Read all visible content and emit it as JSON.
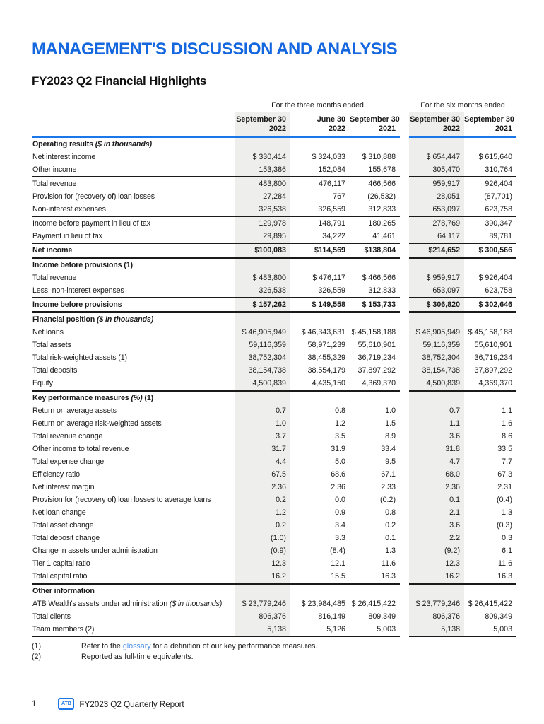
{
  "page": {
    "title": "MANAGEMENT'S DISCUSSION AND ANALYSIS",
    "subtitle": "FY2023 Q2 Financial Highlights"
  },
  "colors": {
    "brand_blue": "#1467df",
    "rule_blue": "#1b76e8",
    "link_blue": "#4a90e8",
    "shade_gray": "#eeeeec"
  },
  "table": {
    "group_headers": [
      {
        "label": "For the three months ended",
        "span": 3
      },
      {
        "label": "For the six months ended",
        "span": 2
      }
    ],
    "column_headers": [
      {
        "line1": "September 30",
        "line2": "2022",
        "shaded": true
      },
      {
        "line1": "June 30",
        "line2": "2022",
        "shaded": false
      },
      {
        "line1": "September 30",
        "line2": "2021",
        "shaded": false
      },
      {
        "line1": "September 30",
        "line2": "2022",
        "shaded": true
      },
      {
        "line1": "September 30",
        "line2": "2021",
        "shaded": false
      }
    ],
    "rows": [
      {
        "type": "section",
        "label": "Operating results ",
        "italic": "($ in thousands)",
        "values": [
          "",
          "",
          "",
          "",
          ""
        ]
      },
      {
        "type": "data",
        "label": "Net interest income",
        "values": [
          "$ 330,414",
          "$ 324,033",
          "$ 310,888",
          "$ 654,447",
          "$ 615,640"
        ]
      },
      {
        "type": "data",
        "label": "Other income",
        "values": [
          "153,386",
          "152,084",
          "155,678",
          "305,470",
          "310,764"
        ]
      },
      {
        "type": "data",
        "label": "Total revenue",
        "border_top": "med",
        "values": [
          "483,800",
          "476,117",
          "466,566",
          "959,917",
          "926,404"
        ]
      },
      {
        "type": "data",
        "label": "Provision for (recovery of) loan losses",
        "values": [
          "27,284",
          "767",
          "(26,532)",
          "28,051",
          "(87,701)"
        ]
      },
      {
        "type": "data",
        "label": "Non-interest expenses",
        "values": [
          "326,538",
          "326,559",
          "312,833",
          "653,097",
          "623,758"
        ]
      },
      {
        "type": "data",
        "label": "Income before payment in lieu of tax",
        "border_top": "med",
        "values": [
          "129,978",
          "148,791",
          "180,265",
          "278,769",
          "390,347"
        ]
      },
      {
        "type": "data",
        "label": "Payment in lieu of tax",
        "values": [
          "29,895",
          "34,222",
          "41,461",
          "64,117",
          "89,781"
        ]
      },
      {
        "type": "total",
        "label": "Net income",
        "border_top": "med",
        "values": [
          "$100,083",
          "$114,569",
          "$138,804",
          "$214,652",
          "$ 300,566"
        ]
      },
      {
        "type": "section",
        "label": "Income before provisions (1)",
        "border_top": "thick",
        "values": [
          "",
          "",
          "",
          "",
          ""
        ]
      },
      {
        "type": "data",
        "label": "Total revenue",
        "values": [
          "$ 483,800",
          "$ 476,117",
          "$ 466,566",
          "$ 959,917",
          "$ 926,404"
        ]
      },
      {
        "type": "data",
        "label": "Less: non-interest expenses",
        "values": [
          "326,538",
          "326,559",
          "312,833",
          "653,097",
          "623,758"
        ]
      },
      {
        "type": "total",
        "label": "Income before provisions",
        "border_top": "med",
        "values": [
          "$ 157,262",
          "$ 149,558",
          "$ 153,733",
          "$ 306,820",
          "$ 302,646"
        ]
      },
      {
        "type": "section",
        "label": "Financial position ",
        "italic": "($ in thousands)",
        "border_top": "thick",
        "values": [
          "",
          "",
          "",
          "",
          ""
        ]
      },
      {
        "type": "data",
        "label": "Net loans",
        "values": [
          "$ 46,905,949",
          "$ 46,343,631",
          "$ 45,158,188",
          "$ 46,905,949",
          "$ 45,158,188"
        ]
      },
      {
        "type": "data",
        "label": "Total assets",
        "values": [
          "59,116,359",
          "58,971,239",
          "55,610,901",
          "59,116,359",
          "55,610,901"
        ]
      },
      {
        "type": "data",
        "label": "Total risk-weighted assets (1)",
        "values": [
          "38,752,304",
          "38,455,329",
          "36,719,234",
          "38,752,304",
          "36,719,234"
        ]
      },
      {
        "type": "data",
        "label": "Total deposits",
        "values": [
          "38,154,738",
          "38,554,179",
          "37,897,292",
          "38,154,738",
          "37,897,292"
        ]
      },
      {
        "type": "data",
        "label": "Equity",
        "values": [
          "4,500,839",
          "4,435,150",
          "4,369,370",
          "4,500,839",
          "4,369,370"
        ]
      },
      {
        "type": "section",
        "label": "Key performance measures ",
        "italic": "(%)",
        "suffix": " (1)",
        "border_top": "thick",
        "values": [
          "",
          "",
          "",
          "",
          ""
        ]
      },
      {
        "type": "data",
        "label": "Return on average assets",
        "values": [
          "0.7",
          "0.8",
          "1.0",
          "0.7",
          "1.1"
        ]
      },
      {
        "type": "data",
        "label": "Return on average risk-weighted assets",
        "values": [
          "1.0",
          "1.2",
          "1.5",
          "1.1",
          "1.6"
        ]
      },
      {
        "type": "data",
        "label": "Total revenue change",
        "values": [
          "3.7",
          "3.5",
          "8.9",
          "3.6",
          "8.6"
        ]
      },
      {
        "type": "data",
        "label": "Other income to total revenue",
        "values": [
          "31.7",
          "31.9",
          "33.4",
          "31.8",
          "33.5"
        ]
      },
      {
        "type": "data",
        "label": "Total expense change",
        "values": [
          "4.4",
          "5.0",
          "9.5",
          "4.7",
          "7.7"
        ]
      },
      {
        "type": "data",
        "label": "Efficiency ratio",
        "values": [
          "67.5",
          "68.6",
          "67.1",
          "68.0",
          "67.3"
        ]
      },
      {
        "type": "data",
        "label": "Net interest margin",
        "values": [
          "2.36",
          "2.36",
          "2.33",
          "2.36",
          "2.31"
        ]
      },
      {
        "type": "data",
        "label": "Provision for (recovery of) loan losses to average loans",
        "values": [
          "0.2",
          "0.0",
          "(0.2)",
          "0.1",
          "(0.4)"
        ]
      },
      {
        "type": "data",
        "label": "Net loan change",
        "values": [
          "1.2",
          "0.9",
          "0.8",
          "2.1",
          "1.3"
        ]
      },
      {
        "type": "data",
        "label": "Total asset change",
        "values": [
          "0.2",
          "3.4",
          "0.2",
          "3.6",
          "(0.3)"
        ]
      },
      {
        "type": "data",
        "label": "Total deposit change",
        "values": [
          "(1.0)",
          "3.3",
          "0.1",
          "2.2",
          "0.3"
        ]
      },
      {
        "type": "data",
        "label": "Change in assets under administration",
        "values": [
          "(0.9)",
          "(8.4)",
          "1.3",
          "(9.2)",
          "6.1"
        ]
      },
      {
        "type": "data",
        "label": "Tier 1 capital ratio",
        "values": [
          "12.3",
          "12.1",
          "11.6",
          "12.3",
          "11.6"
        ]
      },
      {
        "type": "data",
        "label": "Total capital ratio",
        "values": [
          "16.2",
          "15.5",
          "16.3",
          "16.2",
          "16.3"
        ]
      },
      {
        "type": "section",
        "label": "Other information",
        "border_top": "thick",
        "values": [
          "",
          "",
          "",
          "",
          ""
        ]
      },
      {
        "type": "data",
        "label": "ATB Wealth's assets under administration ",
        "italic": "($ in thousands)",
        "values": [
          "$ 23,779,246",
          "$ 23,984,485",
          "$ 26,415,422",
          "$ 23,779,246",
          "$ 26,415,422"
        ]
      },
      {
        "type": "data",
        "label": "Total clients",
        "values": [
          "806,376",
          "816,149",
          "809,349",
          "806,376",
          "809,349"
        ]
      },
      {
        "type": "data",
        "label": "Team members (2)",
        "border_bottom": "med",
        "values": [
          "5,138",
          "5,126",
          "5,003",
          "5,138",
          "5,003"
        ]
      }
    ]
  },
  "footnotes": [
    {
      "num": "(1)",
      "text_before": "Refer to the ",
      "link_text": "glossary",
      "text_after": " for a definition of our key performance measures."
    },
    {
      "num": "(2)",
      "text_before": "Reported as full-time equivalents.",
      "link_text": "",
      "text_after": ""
    }
  ],
  "footer": {
    "page_number": "1",
    "logo_text": "ATB",
    "report_title": "FY2023 Q2 Quarterly Report"
  }
}
